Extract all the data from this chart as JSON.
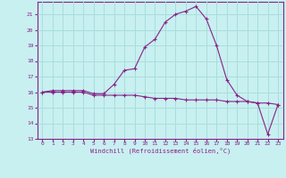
{
  "xlabel": "Windchill (Refroidissement éolien,°C)",
  "background_color": "#c8f0f0",
  "line_color": "#882288",
  "grid_color": "#aadddd",
  "x_data": [
    0,
    1,
    2,
    3,
    4,
    5,
    6,
    7,
    8,
    9,
    10,
    11,
    12,
    13,
    14,
    15,
    16,
    17,
    18,
    19,
    20,
    21,
    22,
    23
  ],
  "y_temp": [
    16.0,
    16.1,
    16.1,
    16.1,
    16.1,
    15.9,
    15.9,
    16.5,
    17.4,
    17.5,
    18.9,
    19.4,
    20.5,
    21.0,
    21.2,
    21.5,
    20.7,
    19.0,
    16.8,
    15.8,
    15.4,
    15.3,
    13.3,
    15.2
  ],
  "y_wind": [
    16.0,
    16.0,
    16.0,
    16.0,
    16.0,
    15.8,
    15.8,
    15.8,
    15.8,
    15.8,
    15.7,
    15.6,
    15.6,
    15.6,
    15.5,
    15.5,
    15.5,
    15.5,
    15.4,
    15.4,
    15.4,
    15.3,
    15.3,
    15.2
  ],
  "xlim": [
    -0.5,
    23.5
  ],
  "ylim": [
    13,
    21.8
  ],
  "xticks": [
    0,
    1,
    2,
    3,
    4,
    5,
    6,
    7,
    8,
    9,
    10,
    11,
    12,
    13,
    14,
    15,
    16,
    17,
    18,
    19,
    20,
    21,
    22,
    23
  ],
  "yticks": [
    13,
    14,
    15,
    16,
    17,
    18,
    19,
    20,
    21
  ],
  "marker": "+"
}
